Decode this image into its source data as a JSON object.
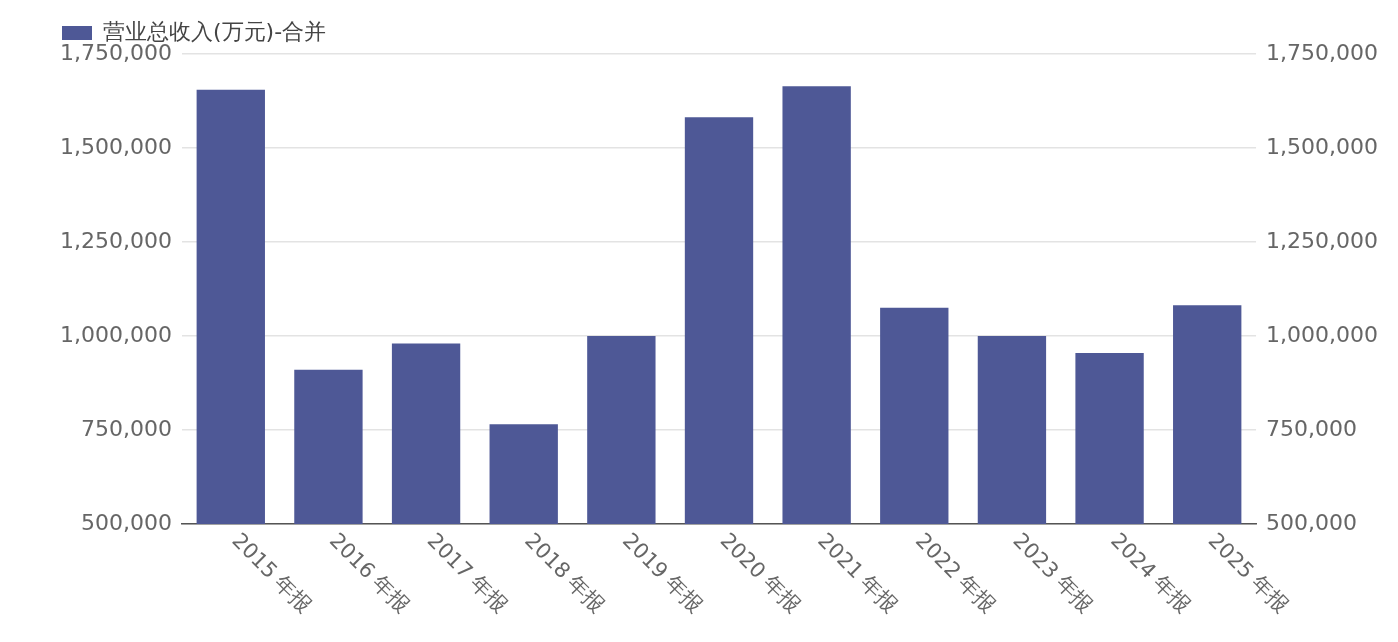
{
  "chart_data": {
    "type": "bar",
    "categories": [
      "2015 年报",
      "2016 年报",
      "2017 年报",
      "2018 年报",
      "2019 年报",
      "2020 年报",
      "2021 年报",
      "2022 年报",
      "2023 年报",
      "2024 年报",
      "2025 年报"
    ],
    "series": [
      {
        "name": "营业总收入(万元)-合并",
        "color": "#4e5896",
        "values": [
          1655000,
          910000,
          980000,
          765000,
          1000000,
          1582000,
          1664000,
          1075000,
          1000000,
          955000,
          1082000
        ]
      }
    ],
    "ylim": [
      500000,
      1750000
    ],
    "yticks": [
      {
        "value": 500000,
        "label": "500,000"
      },
      {
        "value": 750000,
        "label": "750,000"
      },
      {
        "value": 1000000,
        "label": "1,000,000"
      },
      {
        "value": 1250000,
        "label": "1,250,000"
      },
      {
        "value": 1500000,
        "label": "1,500,000"
      },
      {
        "value": 1750000,
        "label": "1,750,000"
      }
    ],
    "y2lim": [
      500000,
      1750000
    ],
    "y2ticks": [
      {
        "value": 500000,
        "label": "500,000"
      },
      {
        "value": 750000,
        "label": "750,000"
      },
      {
        "value": 1000000,
        "label": "1,000,000"
      },
      {
        "value": 1250000,
        "label": "1,250,000"
      },
      {
        "value": 1500000,
        "label": "1,500,000"
      },
      {
        "value": 1750000,
        "label": "1,750,000"
      }
    ],
    "grid": "y",
    "legend": "top left"
  }
}
